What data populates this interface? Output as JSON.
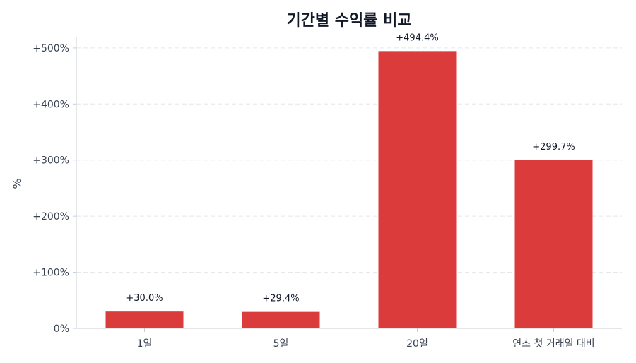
{
  "chart_data": {
    "type": "bar",
    "title": "기간별 수익률 비교",
    "xlabel": "",
    "ylabel": "%",
    "categories": [
      "1일",
      "5일",
      "20일",
      "연초 첫 거래일 대비"
    ],
    "values": [
      30.0,
      29.4,
      494.4,
      299.7
    ],
    "data_labels": [
      "+30.0%",
      "+29.4%",
      "+494.4%",
      "+299.7%"
    ],
    "yticks": [
      0,
      100,
      200,
      300,
      400,
      500
    ],
    "ytick_labels": [
      "0%",
      "+100%",
      "+200%",
      "+300%",
      "+400%",
      "+500%"
    ],
    "ylim": [
      0,
      520
    ],
    "grid": "horizontal dashed",
    "bar_color": "#dc3b3b"
  }
}
